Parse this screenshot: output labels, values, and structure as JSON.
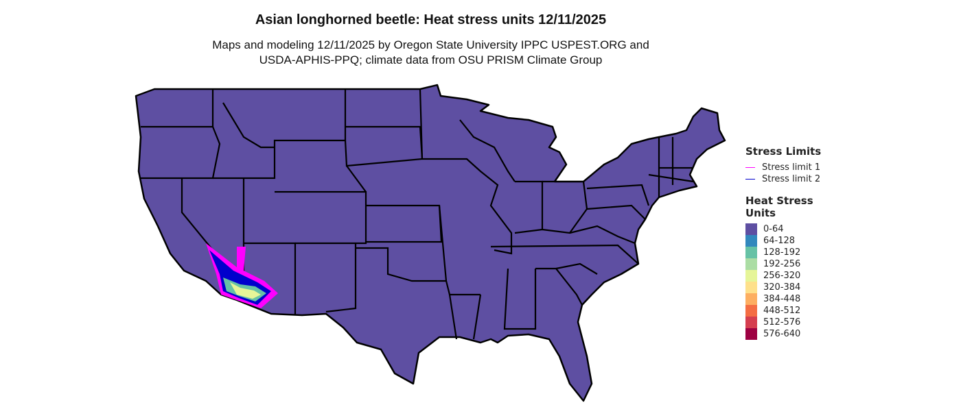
{
  "title": "Asian longhorned beetle: Heat stress units 12/11/2025",
  "subtitle_line1": "Maps and modeling 12/11/2025 by Oregon State University IPPC USPEST.ORG and",
  "subtitle_line2": "USDA-APHIS-PPQ; climate data from OSU PRISM Climate Group",
  "legend": {
    "stress_title": "Stress Limits",
    "stress_items": [
      {
        "label": "Stress limit 1",
        "color": "#ff00ff"
      },
      {
        "label": "Stress limit 2",
        "color": "#0000cc"
      }
    ],
    "heat_title_1": "Heat Stress",
    "heat_title_2": "Units",
    "heat_items": [
      {
        "label": "0-64",
        "color": "#5e4fa2"
      },
      {
        "label": "64-128",
        "color": "#3288bd"
      },
      {
        "label": "128-192",
        "color": "#66c2a5"
      },
      {
        "label": "192-256",
        "color": "#abdda4"
      },
      {
        "label": "256-320",
        "color": "#e6f598"
      },
      {
        "label": "320-384",
        "color": "#fee08b"
      },
      {
        "label": "384-448",
        "color": "#fdae61"
      },
      {
        "label": "448-512",
        "color": "#f46d43"
      },
      {
        "label": "512-576",
        "color": "#d53e4f"
      },
      {
        "label": "576-640",
        "color": "#9e0142"
      }
    ]
  }
}
